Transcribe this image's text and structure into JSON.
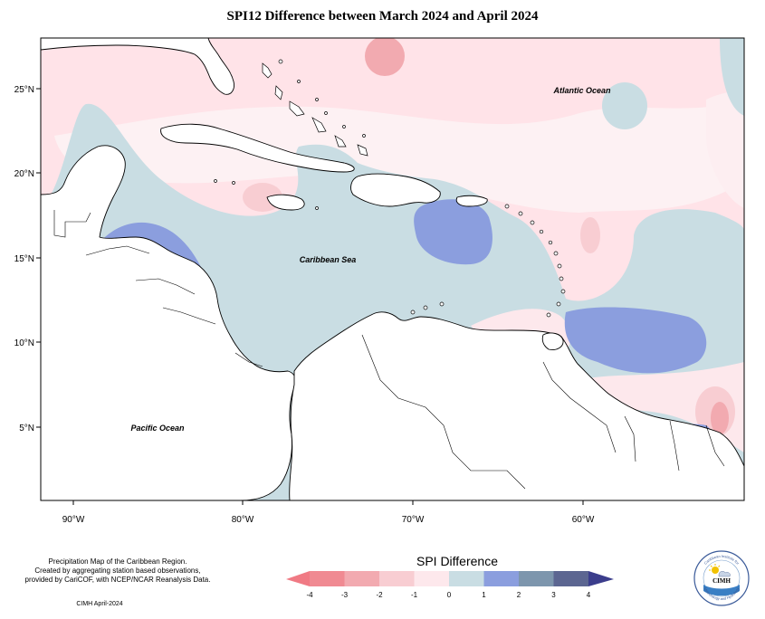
{
  "title": "SPI12 Difference between March 2024 and April 2024",
  "map": {
    "labels": {
      "atlantic": "Atlantic Ocean",
      "caribbean": "Caribbean Sea",
      "pacific": "Pacific Ocean"
    },
    "lat_ticks": [
      "25°N",
      "20°N",
      "15°N",
      "10°N",
      "5°N"
    ],
    "lon_ticks": [
      "90°W",
      "80°W",
      "70°W",
      "60°W"
    ],
    "colors": {
      "ocean_background": "#ffe3e8",
      "land": "#ffffff",
      "coast": "#000000"
    }
  },
  "legend": {
    "title": "SPI Difference",
    "ticks": [
      "-4",
      "-3",
      "-2",
      "-1",
      "0",
      "1",
      "2",
      "3",
      "4"
    ],
    "colors": [
      "#f08a92",
      "#f2aab0",
      "#f8cdd2",
      "#fde8ec",
      "#c9dde3",
      "#8b9ede",
      "#7d96ad",
      "#5c6691"
    ],
    "end_colors": [
      "#f07a84",
      "#3b3d8c"
    ]
  },
  "credits": {
    "line1": "Precipitation Map of the Caribbean Region.",
    "line2": "Created by aggregating station based observations,",
    "line3": "provided by CariCOF, with NCEP/NCAR Reanalysis Data.",
    "footer": "CIMH April-2024"
  },
  "logo": {
    "text_center": "CIMH",
    "text_top": "Caribbean Institute for",
    "text_bottom": "Meteorology and Hydrology"
  }
}
